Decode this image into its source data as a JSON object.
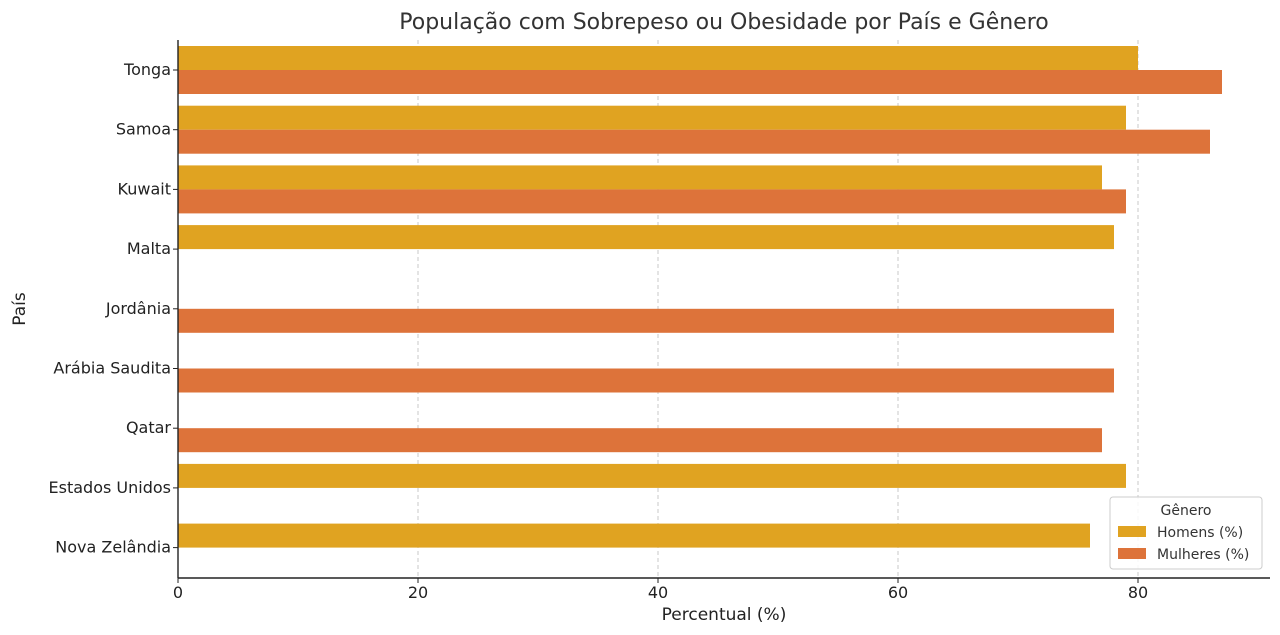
{
  "chart_data": {
    "type": "bar",
    "orientation": "horizontal",
    "title": "População com Sobrepeso ou Obesidade por País e Gênero",
    "xlabel": "Percentual (%)",
    "ylabel": "País",
    "xlim": [
      0,
      91
    ],
    "xticks": [
      0,
      20,
      40,
      60,
      80
    ],
    "grid": "vertical-dashed",
    "legend_title": "Gênero",
    "legend_position": "bottom-right",
    "categories": [
      "Tonga",
      "Samoa",
      "Kuwait",
      "Malta",
      "Jordânia",
      "Arábia Saudita",
      "Qatar",
      "Estados Unidos",
      "Nova Zelândia"
    ],
    "series": [
      {
        "name": "Homens (%)",
        "color": "#E0A321",
        "values": [
          80,
          79,
          77,
          78,
          null,
          null,
          null,
          79,
          76
        ]
      },
      {
        "name": "Mulheres (%)",
        "color": "#DD733A",
        "values": [
          87,
          86,
          79,
          null,
          78,
          78,
          77,
          null,
          null
        ]
      }
    ]
  }
}
